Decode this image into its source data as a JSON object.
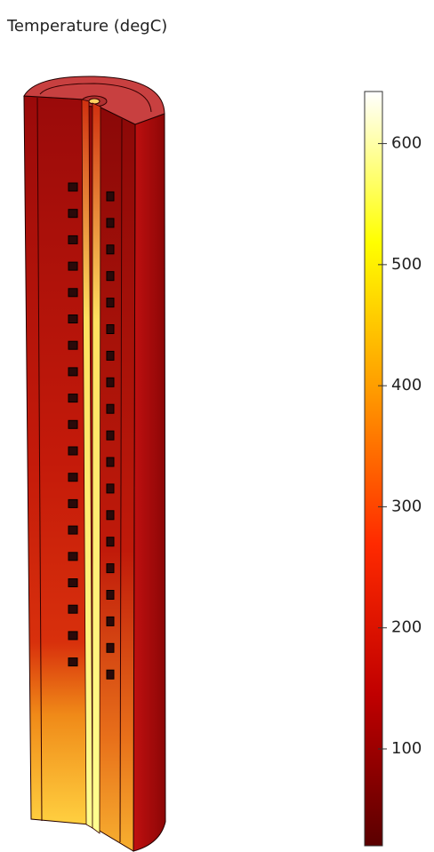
{
  "chart_data": {
    "type": "colorbar",
    "title": "Temperature (degC)",
    "clim": [
      20,
      643
    ],
    "ticks": [
      100,
      200,
      300,
      400,
      500,
      600
    ],
    "colormap": [
      "#5a0000",
      "#c00000",
      "#ff2a00",
      "#ff9900",
      "#ffff00",
      "#ffffff"
    ]
  }
}
